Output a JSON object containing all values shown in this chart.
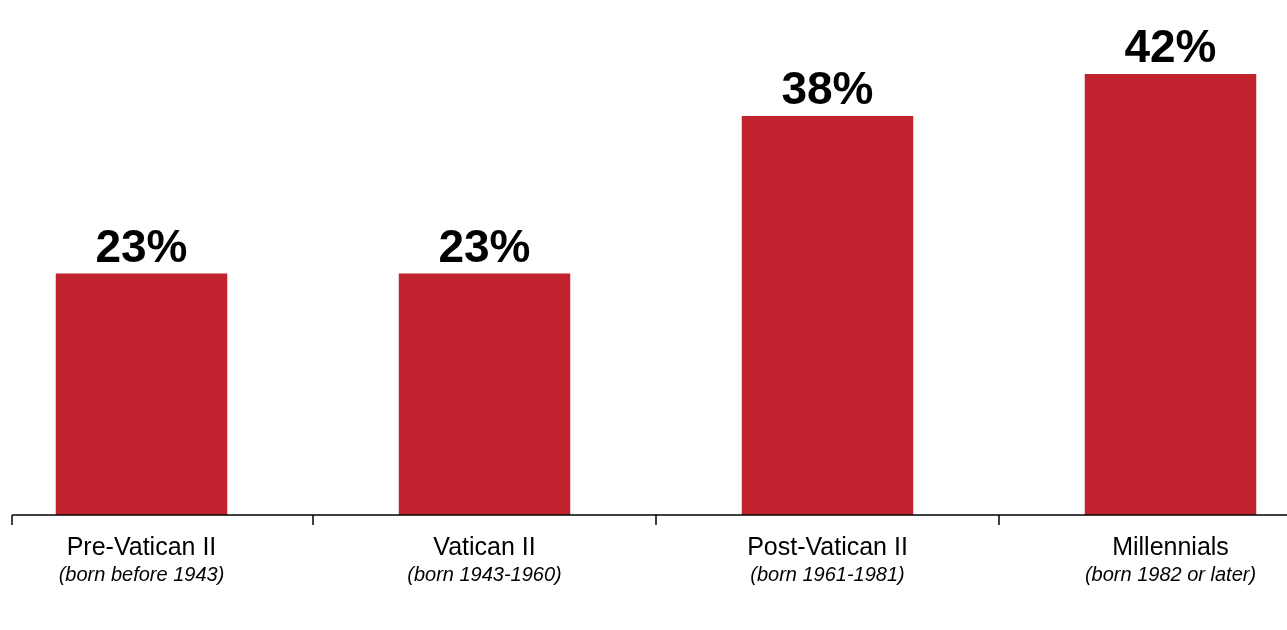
{
  "chart_data": {
    "type": "bar",
    "categories": [
      "Pre-Vatican II\n(born before 1943)",
      "Vatican II\n(born 1943-1960)",
      "Post-Vatican II\n(born 1961-1981)",
      "Millennials\n(born 1982 or later)"
    ],
    "values": [
      23,
      23,
      38,
      42
    ],
    "color": "#c1232f",
    "value_labels": [
      "23%",
      "23%",
      "38%",
      "42%"
    ]
  }
}
